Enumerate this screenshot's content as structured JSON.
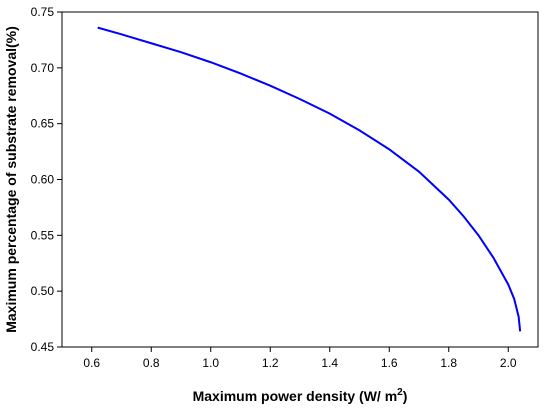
{
  "chart_data": {
    "type": "line",
    "title": "",
    "xlabel": "Maximum power density (W/ m",
    "xlabel_superscript": "2",
    "xlabel_suffix": ")",
    "ylabel": "Maximum percentage of substrate removal(%)",
    "xlim": [
      0.5,
      2.1
    ],
    "ylim": [
      0.45,
      0.75
    ],
    "x_ticks": [
      "0.6",
      "0.8",
      "1.0",
      "1.2",
      "1.4",
      "1.6",
      "1.8",
      "2.0"
    ],
    "y_ticks": [
      "0.45",
      "0.50",
      "0.55",
      "0.60",
      "0.65",
      "0.70",
      "0.75"
    ],
    "grid": false,
    "legend": "none",
    "series": [
      {
        "color": "#0000ff",
        "x": [
          0.62,
          0.7,
          0.8,
          0.9,
          1.0,
          1.1,
          1.2,
          1.3,
          1.4,
          1.5,
          1.6,
          1.7,
          1.8,
          1.85,
          1.9,
          1.95,
          2.0,
          2.02,
          2.035,
          2.04
        ],
        "y": [
          0.736,
          0.73,
          0.722,
          0.714,
          0.705,
          0.695,
          0.684,
          0.672,
          0.659,
          0.644,
          0.627,
          0.607,
          0.582,
          0.567,
          0.55,
          0.53,
          0.506,
          0.493,
          0.477,
          0.464
        ]
      }
    ]
  }
}
